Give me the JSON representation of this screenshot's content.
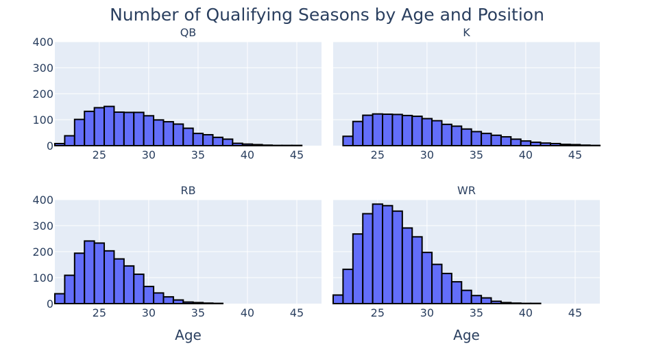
{
  "figure": {
    "title": "Number of Qualifying Seasons by Age and Position",
    "bar_color": "#636efa",
    "bar_outline": "#000000",
    "plot_bg": "#e5ecf6"
  },
  "chart_data": [
    {
      "type": "bar",
      "title": "QB",
      "xlabel": "",
      "ylabel": "",
      "xlim": [
        20.5,
        47.5
      ],
      "ylim": [
        0,
        400
      ],
      "x_ticks": [
        25,
        30,
        35,
        40,
        45
      ],
      "y_ticks": [
        0,
        100,
        200,
        300,
        400
      ],
      "x": [
        21,
        22,
        23,
        24,
        25,
        26,
        27,
        28,
        29,
        30,
        31,
        32,
        33,
        34,
        35,
        36,
        37,
        38,
        39,
        40,
        41,
        42,
        43,
        44,
        45
      ],
      "values": [
        8,
        38,
        101,
        132,
        146,
        151,
        129,
        128,
        128,
        115,
        99,
        92,
        83,
        67,
        47,
        42,
        32,
        25,
        9,
        6,
        4,
        2,
        1,
        1,
        1
      ]
    },
    {
      "type": "bar",
      "title": "K",
      "xlabel": "",
      "ylabel": "",
      "xlim": [
        20.5,
        47.5
      ],
      "ylim": [
        0,
        400
      ],
      "x_ticks": [
        25,
        30,
        35,
        40,
        45
      ],
      "y_ticks": [
        0,
        100,
        200,
        300,
        400
      ],
      "x": [
        22,
        23,
        24,
        25,
        26,
        27,
        28,
        29,
        30,
        31,
        32,
        33,
        34,
        35,
        36,
        37,
        38,
        39,
        40,
        41,
        42,
        43,
        44,
        45,
        46,
        47
      ],
      "values": [
        36,
        93,
        117,
        122,
        121,
        120,
        116,
        113,
        104,
        96,
        82,
        75,
        64,
        54,
        47,
        40,
        34,
        25,
        18,
        13,
        10,
        8,
        5,
        4,
        2,
        1
      ]
    },
    {
      "type": "bar",
      "title": "RB",
      "xlabel": "Age",
      "ylabel": "",
      "xlim": [
        20.5,
        47.5
      ],
      "ylim": [
        0,
        400
      ],
      "x_ticks": [
        25,
        30,
        35,
        40,
        45
      ],
      "y_ticks": [
        0,
        100,
        200,
        300,
        400
      ],
      "x": [
        21,
        22,
        23,
        24,
        25,
        26,
        27,
        28,
        29,
        30,
        31,
        32,
        33,
        34,
        35,
        36,
        37
      ],
      "values": [
        38,
        109,
        194,
        241,
        233,
        203,
        172,
        145,
        113,
        66,
        41,
        26,
        14,
        6,
        4,
        2,
        1
      ]
    },
    {
      "type": "bar",
      "title": "WR",
      "xlabel": "Age",
      "ylabel": "",
      "xlim": [
        20.5,
        47.5
      ],
      "ylim": [
        0,
        400
      ],
      "x_ticks": [
        25,
        30,
        35,
        40,
        45
      ],
      "y_ticks": [
        0,
        100,
        200,
        300,
        400
      ],
      "x": [
        21,
        22,
        23,
        24,
        25,
        26,
        27,
        28,
        29,
        30,
        31,
        32,
        33,
        34,
        35,
        36,
        37,
        38,
        39,
        40,
        41
      ],
      "values": [
        33,
        132,
        268,
        346,
        383,
        377,
        356,
        291,
        257,
        197,
        151,
        116,
        84,
        51,
        31,
        22,
        9,
        4,
        2,
        1,
        1
      ]
    }
  ]
}
